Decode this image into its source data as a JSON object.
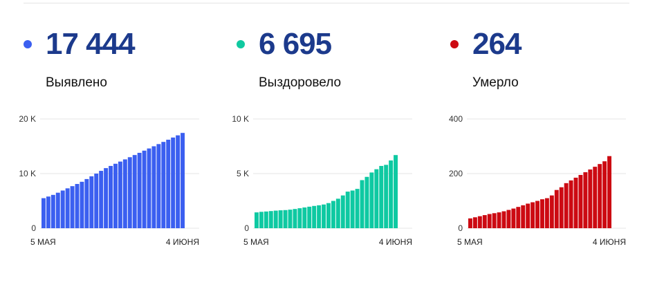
{
  "panels": [
    {
      "value": "17 444",
      "label": "Выявлено",
      "color": "#3b5ff0",
      "dot_color": "#3b5ff0",
      "chart_data": {
        "type": "bar",
        "categories_first": "5 МАЯ",
        "categories_last": "4 ИЮНЯ",
        "ylim": [
          0,
          20000
        ],
        "y_ticks": [
          {
            "v": 0,
            "label": "0"
          },
          {
            "v": 10000,
            "label": "10 K"
          },
          {
            "v": 20000,
            "label": "20 K"
          }
        ],
        "values": [
          5500,
          5800,
          6100,
          6500,
          6900,
          7300,
          7700,
          8100,
          8500,
          9000,
          9500,
          10000,
          10500,
          11000,
          11400,
          11800,
          12200,
          12600,
          13000,
          13400,
          13800,
          14200,
          14600,
          15000,
          15400,
          15800,
          16200,
          16600,
          17000,
          17444
        ]
      }
    },
    {
      "value": "6 695",
      "label": "Выздоровело",
      "color": "#0ec9a2",
      "dot_color": "#10c9a0",
      "chart_data": {
        "type": "bar",
        "categories_first": "5 МАЯ",
        "categories_last": "4 ИЮНЯ",
        "ylim": [
          0,
          10000
        ],
        "y_ticks": [
          {
            "v": 0,
            "label": "0"
          },
          {
            "v": 5000,
            "label": "5 K"
          },
          {
            "v": 10000,
            "label": "10 K"
          }
        ],
        "values": [
          1450,
          1500,
          1530,
          1570,
          1610,
          1640,
          1660,
          1700,
          1760,
          1830,
          1900,
          1970,
          2040,
          2100,
          2170,
          2300,
          2500,
          2700,
          3000,
          3350,
          3450,
          3600,
          4400,
          4700,
          5100,
          5400,
          5700,
          5800,
          6200,
          6695
        ]
      }
    },
    {
      "value": "264",
      "label": "Умерло",
      "color": "#cc0a12",
      "dot_color": "#cc0a12",
      "chart_data": {
        "type": "bar",
        "categories_first": "5 МАЯ",
        "categories_last": "4 ИЮНЯ",
        "ylim": [
          0,
          400
        ],
        "y_ticks": [
          {
            "v": 0,
            "label": "0"
          },
          {
            "v": 200,
            "label": "200"
          },
          {
            "v": 400,
            "label": "400"
          }
        ],
        "values": [
          36,
          40,
          44,
          48,
          52,
          55,
          58,
          62,
          67,
          72,
          78,
          84,
          90,
          95,
          100,
          106,
          110,
          120,
          140,
          150,
          165,
          175,
          185,
          195,
          205,
          215,
          225,
          235,
          245,
          264
        ]
      }
    }
  ]
}
